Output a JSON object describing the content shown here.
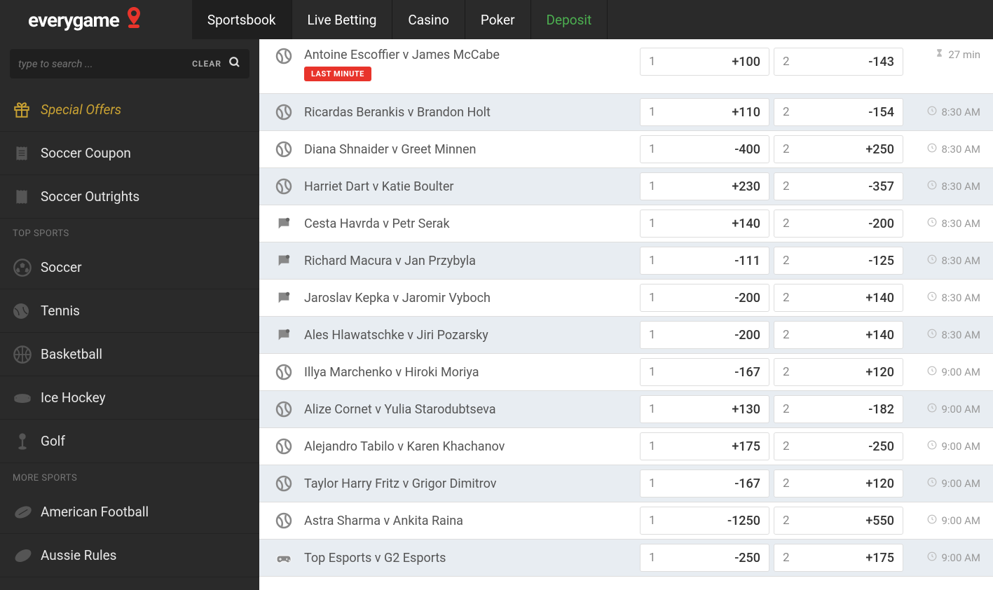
{
  "brand": {
    "name": "everygame"
  },
  "nav": {
    "tabs": [
      {
        "label": "Sportsbook",
        "active": true
      },
      {
        "label": "Live Betting",
        "active": false
      },
      {
        "label": "Casino",
        "active": false
      },
      {
        "label": "Poker",
        "active": false
      },
      {
        "label": "Deposit",
        "active": false,
        "deposit": true
      }
    ]
  },
  "search": {
    "placeholder": "type to search ...",
    "clear": "CLEAR"
  },
  "sidebar": {
    "top": [
      {
        "label": "Special Offers",
        "icon": "gift",
        "special": true
      },
      {
        "label": "Soccer Coupon",
        "icon": "receipt"
      },
      {
        "label": "Soccer Outrights",
        "icon": "receipt2"
      }
    ],
    "sectionTop": "TOP SPORTS",
    "topSports": [
      {
        "label": "Soccer",
        "icon": "soccer"
      },
      {
        "label": "Tennis",
        "icon": "tennis"
      },
      {
        "label": "Basketball",
        "icon": "basketball"
      },
      {
        "label": "Ice Hockey",
        "icon": "hockey"
      },
      {
        "label": "Golf",
        "icon": "golf"
      }
    ],
    "sectionMore": "MORE SPORTS",
    "moreSports": [
      {
        "label": "American Football",
        "icon": "football"
      },
      {
        "label": "Aussie Rules",
        "icon": "rugby"
      }
    ]
  },
  "matches": [
    {
      "icon": "tennis",
      "name": "Antoine Escoffier v James McCabe",
      "badge": "LAST MINUTE",
      "o1": "+100",
      "o2": "-143",
      "time": "27 min",
      "timeIcon": "hourglass",
      "alt": false,
      "tall": true
    },
    {
      "icon": "tennis",
      "name": "Ricardas Berankis v Brandon Holt",
      "o1": "+110",
      "o2": "-154",
      "time": "8:30 AM",
      "timeIcon": "clock",
      "alt": true
    },
    {
      "icon": "tennis",
      "name": "Diana Shnaider v Greet Minnen",
      "o1": "-400",
      "o2": "+250",
      "time": "8:30 AM",
      "timeIcon": "clock",
      "alt": false
    },
    {
      "icon": "tennis",
      "name": "Harriet Dart v Katie Boulter",
      "o1": "+230",
      "o2": "-357",
      "time": "8:30 AM",
      "timeIcon": "clock",
      "alt": true
    },
    {
      "icon": "chat",
      "name": "Cesta Havrda v Petr Serak",
      "o1": "+140",
      "o2": "-200",
      "time": "8:30 AM",
      "timeIcon": "clock",
      "alt": false
    },
    {
      "icon": "chat",
      "name": "Richard Macura v Jan Przybyla",
      "o1": "-111",
      "o2": "-125",
      "time": "8:30 AM",
      "timeIcon": "clock",
      "alt": true
    },
    {
      "icon": "chat",
      "name": "Jaroslav Kepka v Jaromir Vyboch",
      "o1": "-200",
      "o2": "+140",
      "time": "8:30 AM",
      "timeIcon": "clock",
      "alt": false
    },
    {
      "icon": "chat",
      "name": "Ales Hlawatschke v Jiri Pozarsky",
      "o1": "-200",
      "o2": "+140",
      "time": "8:30 AM",
      "timeIcon": "clock",
      "alt": true
    },
    {
      "icon": "tennis",
      "name": "Illya Marchenko v Hiroki Moriya",
      "o1": "-167",
      "o2": "+120",
      "time": "9:00 AM",
      "timeIcon": "clock",
      "alt": false
    },
    {
      "icon": "tennis",
      "name": "Alize Cornet v Yulia Starodubtseva",
      "o1": "+130",
      "o2": "-182",
      "time": "9:00 AM",
      "timeIcon": "clock",
      "alt": true
    },
    {
      "icon": "tennis",
      "name": "Alejandro Tabilo v Karen Khachanov",
      "o1": "+175",
      "o2": "-250",
      "time": "9:00 AM",
      "timeIcon": "clock",
      "alt": false
    },
    {
      "icon": "tennis",
      "name": "Taylor Harry Fritz v Grigor Dimitrov",
      "o1": "-167",
      "o2": "+120",
      "time": "9:00 AM",
      "timeIcon": "clock",
      "alt": true
    },
    {
      "icon": "tennis",
      "name": "Astra Sharma v Ankita Raina",
      "o1": "-1250",
      "o2": "+550",
      "time": "9:00 AM",
      "timeIcon": "clock",
      "alt": false
    },
    {
      "icon": "game",
      "name": "Top Esports v G2 Esports",
      "o1": "-250",
      "o2": "+175",
      "time": "9:00 AM",
      "timeIcon": "clock",
      "alt": true
    }
  ],
  "odds": {
    "label1": "1",
    "label2": "2"
  },
  "colors": {
    "accent": "#e8342b",
    "deposit": "#4caf50",
    "alt_row": "#e8edf2"
  }
}
